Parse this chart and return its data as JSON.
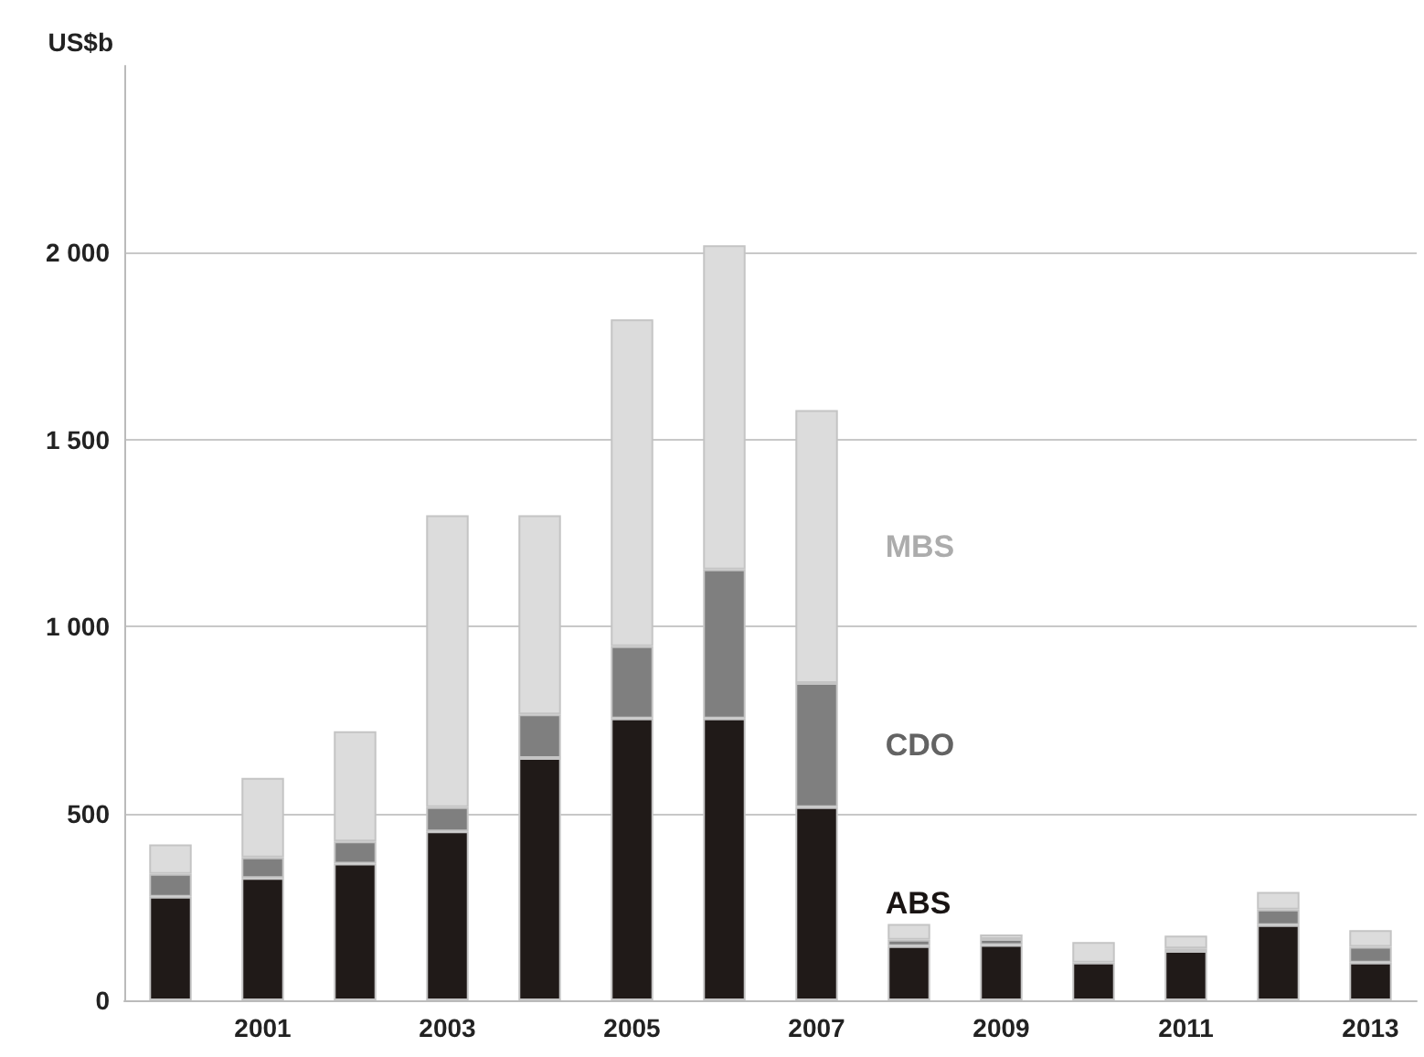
{
  "chart_data": {
    "type": "bar",
    "stacked": true,
    "ylabel": "US$b",
    "categories": [
      null,
      "2001",
      null,
      "2003",
      null,
      "2005",
      null,
      "2007",
      null,
      "2009",
      null,
      "2011",
      null,
      "2013"
    ],
    "series": [
      {
        "name": "ABS",
        "color": "#201a18",
        "values": [
          277,
          327,
          366,
          452,
          648,
          754,
          754,
          517,
          145,
          148,
          101,
          132,
          201,
          101
        ]
      },
      {
        "name": "CDO",
        "color": "#7f7f7f",
        "values": [
          61,
          55,
          59,
          65,
          117,
          193,
          399,
          332,
          17,
          16,
          0,
          7,
          42,
          42
        ]
      },
      {
        "name": "MBS",
        "color": "#dcdcdc",
        "values": [
          79,
          213,
          295,
          781,
          533,
          875,
          867,
          730,
          42,
          12,
          55,
          34,
          47,
          45
        ]
      }
    ],
    "ylim": [
      0,
      2500
    ],
    "yticks": [
      0,
      500,
      {
        "value": 1000,
        "label": "1 000"
      },
      {
        "value": 1500,
        "label": "1 500"
      },
      {
        "value": 2000,
        "label": "2 000"
      }
    ],
    "grid": "y",
    "legend": false
  }
}
